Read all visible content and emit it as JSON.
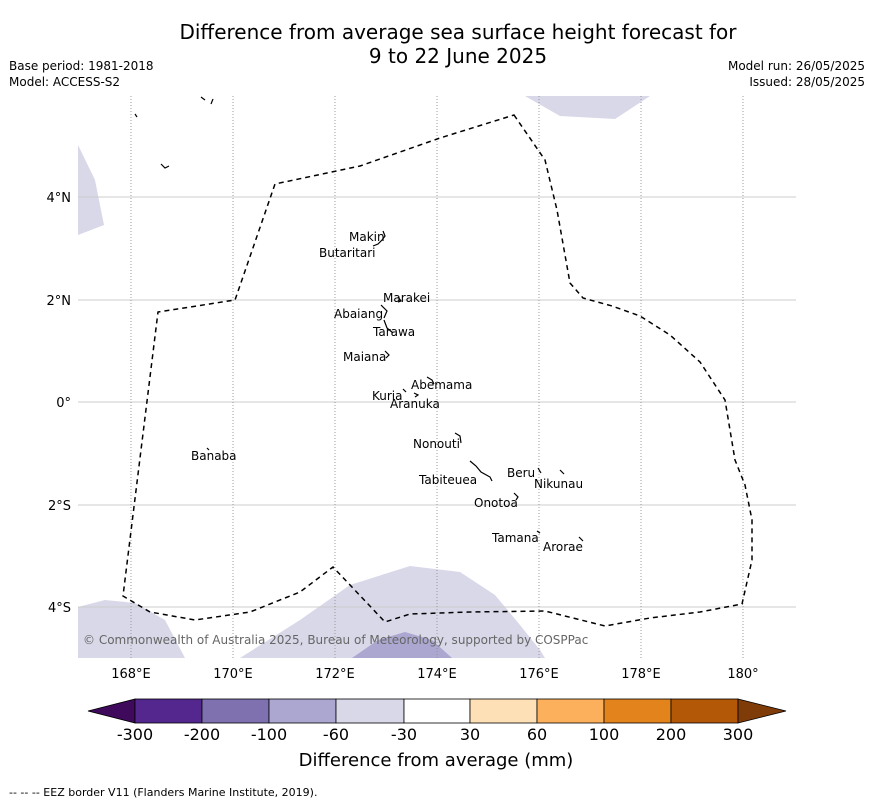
{
  "title": {
    "line1": "Difference from average sea surface height forecast for",
    "line2": "9 to 22 June 2025"
  },
  "meta": {
    "base_period": "Base period: 1981-2018",
    "model": "Model: ACCESS-S2",
    "model_run": "Model run: 26/05/2025",
    "issued": "Issued: 28/05/2025"
  },
  "map": {
    "lon_ticks": [
      "168°E",
      "170°E",
      "172°E",
      "174°E",
      "176°E",
      "178°E",
      "180°"
    ],
    "lat_ticks": [
      "4°N",
      "2°N",
      "0°",
      "2°S",
      "4°S"
    ],
    "place_names": [
      "Makin",
      "Butaritari",
      "Marakei",
      "Abaiang",
      "Tarawa",
      "Maiana",
      "Abemama",
      "Kuria",
      "Aranuka",
      "Nonouti",
      "Banaba",
      "Beru",
      "Nikunau",
      "Tabiteuea",
      "Onotoa",
      "Tamana",
      "Arorae"
    ],
    "copyright": "© Commonwealth of Australia 2025, Bureau of Meteorology, supported by COSPPac"
  },
  "colorbar": {
    "ticks": [
      "-300",
      "-200",
      "-100",
      "-60",
      "-30",
      "30",
      "60",
      "100",
      "200",
      "300"
    ],
    "colors": [
      "#3f0a5c",
      "#54278f",
      "#7f71b0",
      "#aba7d0",
      "#d8d8e9",
      "#ffffff",
      "#fde0b6",
      "#fcb05b",
      "#e2831b",
      "#b35806",
      "#7f3b08"
    ],
    "label": "Difference from average (mm)"
  },
  "footer": "--  --  -- EEZ border V11 (Flanders Marine Institute, 2019)."
}
